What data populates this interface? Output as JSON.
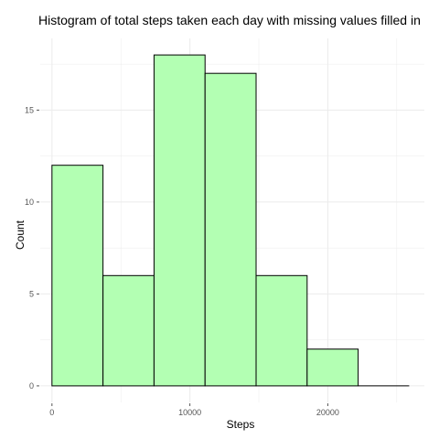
{
  "chart_data": {
    "type": "bar",
    "title": "Histogram of total steps taken each day with missing values filled in",
    "xlabel": "Steps",
    "ylabel": "Count",
    "bins": [
      {
        "x_start": 0,
        "x_end": 3700,
        "count": 12
      },
      {
        "x_start": 3700,
        "x_end": 7400,
        "count": 6
      },
      {
        "x_start": 7400,
        "x_end": 11100,
        "count": 18
      },
      {
        "x_start": 11100,
        "x_end": 14800,
        "count": 17
      },
      {
        "x_start": 14800,
        "x_end": 18500,
        "count": 6
      },
      {
        "x_start": 18500,
        "x_end": 22200,
        "count": 2
      },
      {
        "x_start": 22200,
        "x_end": 25900,
        "count": 0
      }
    ],
    "x_ticks": [
      0,
      10000,
      20000
    ],
    "x_tick_labels": [
      "0",
      "10000",
      "20000"
    ],
    "y_ticks": [
      0,
      5,
      10,
      15
    ],
    "y_tick_labels": [
      "0",
      "5",
      "10",
      "15"
    ],
    "xlim": [
      -850,
      27000
    ],
    "ylim": [
      -0.9,
      18.9
    ],
    "grid": true,
    "bar_fill": "#b3ffb3",
    "bar_edge": "#000000",
    "grid_color": "#ebebeb"
  }
}
